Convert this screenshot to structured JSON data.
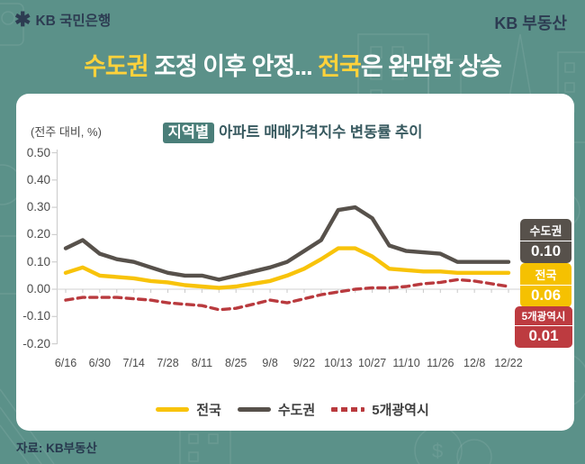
{
  "header": {
    "logo_text": "KB 국민은행",
    "star_icon": "✱",
    "brand": "KB 부동산"
  },
  "headline": {
    "seg1": "수도권",
    "seg2": " 조정 이후 안정... ",
    "seg3": "전국",
    "seg4": "은 완만한 상승"
  },
  "chart": {
    "unit_label": "(전주 대비, %)",
    "title_badge": "지역별",
    "title_rest": "아파트 매매가격지수 변동률 추이"
  },
  "chart_data": {
    "type": "line",
    "title": "지역별 아파트 매매가격지수 변동률 추이",
    "ylabel": "(전주 대비, %)",
    "ylim": [
      -0.2,
      0.5
    ],
    "y_tick_labels": [
      "0.50",
      "0.40",
      "0.30",
      "0.20",
      "0.10",
      "0.00",
      "-0.10",
      "-0.20"
    ],
    "y_tick_values": [
      0.5,
      0.4,
      0.3,
      0.2,
      0.1,
      0.0,
      -0.1,
      -0.2
    ],
    "x": [
      "6/16",
      "",
      "6/30",
      "",
      "7/14",
      "",
      "7/28",
      "",
      "8/11",
      "",
      "8/25",
      "",
      "9/8",
      "",
      "9/22",
      "",
      "10/13",
      "",
      "10/27",
      "",
      "11/10",
      "",
      "11/26",
      "",
      "12/8",
      "",
      "12/22"
    ],
    "x_tick_labels": [
      "6/16",
      "6/30",
      "7/14",
      "7/28",
      "8/11",
      "8/25",
      "9/8",
      "9/22",
      "10/13",
      "10/27",
      "11/10",
      "11/26",
      "12/8",
      "12/22"
    ],
    "legend_position": "bottom",
    "grid": false,
    "series": [
      {
        "key": "nationwide",
        "name": "전국",
        "color": "#f8c30a",
        "style": "solid",
        "values": [
          0.06,
          0.08,
          0.05,
          0.045,
          0.04,
          0.03,
          0.025,
          0.015,
          0.01,
          0.005,
          0.01,
          0.02,
          0.03,
          0.05,
          0.075,
          0.11,
          0.15,
          0.15,
          0.12,
          0.075,
          0.07,
          0.065,
          0.065,
          0.06,
          0.06,
          0.06,
          0.06
        ]
      },
      {
        "key": "metro",
        "name": "수도권",
        "color": "#57514b",
        "style": "solid",
        "values": [
          0.15,
          0.18,
          0.13,
          0.11,
          0.1,
          0.08,
          0.06,
          0.05,
          0.05,
          0.035,
          0.05,
          0.065,
          0.08,
          0.1,
          0.14,
          0.18,
          0.29,
          0.3,
          0.26,
          0.16,
          0.14,
          0.135,
          0.13,
          0.1,
          0.1,
          0.1,
          0.1
        ]
      },
      {
        "key": "five-cities",
        "name": "5개광역시",
        "color": "#b93a3e",
        "style": "dashed",
        "values": [
          -0.04,
          -0.03,
          -0.03,
          -0.03,
          -0.035,
          -0.04,
          -0.05,
          -0.055,
          -0.06,
          -0.075,
          -0.07,
          -0.055,
          -0.04,
          -0.05,
          -0.035,
          -0.02,
          -0.01,
          0.0,
          0.005,
          0.005,
          0.01,
          0.02,
          0.025,
          0.035,
          0.03,
          0.02,
          0.01
        ]
      }
    ],
    "end_labels": [
      {
        "key": "metro",
        "name": "수도권",
        "value": "0.10",
        "color": "#57514b"
      },
      {
        "key": "nationwide",
        "name": "전국",
        "value": "0.06",
        "color": "#f5c101"
      },
      {
        "key": "five-cities",
        "name": "5개광역시",
        "value": "0.01",
        "color": "#bd3b40"
      }
    ]
  },
  "footer": {
    "source": "자료: KB부동산"
  },
  "colors": {
    "background_teal": "#5b9189",
    "badge_teal": "#4a7e79",
    "headline_accent": "#ffd23b",
    "brand_navy": "#2d3c52"
  }
}
